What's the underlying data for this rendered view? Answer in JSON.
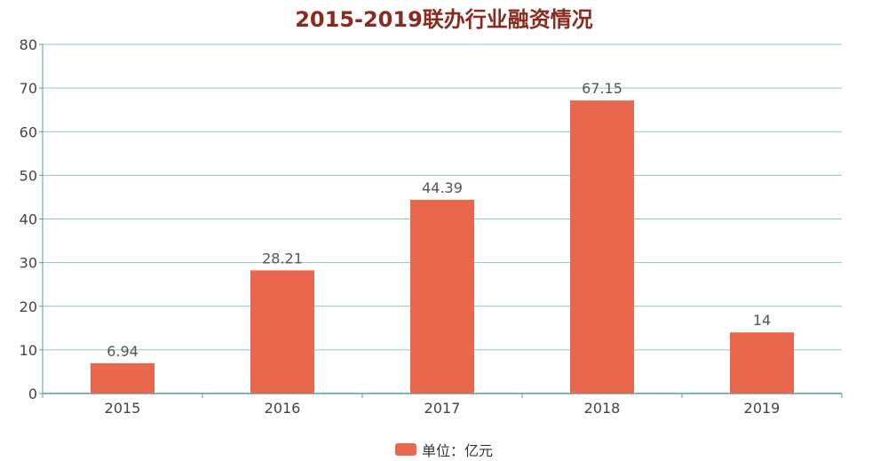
{
  "chart_data": {
    "type": "bar",
    "title": "2015-2019联办行业融资情况",
    "categories": [
      "2015",
      "2016",
      "2017",
      "2018",
      "2019"
    ],
    "series": [
      {
        "name": "单位：亿元",
        "values": [
          6.94,
          28.21,
          44.39,
          67.15,
          14
        ]
      }
    ],
    "data_labels": [
      "6.94",
      "28.21",
      "44.39",
      "67.15",
      "14"
    ],
    "ylim": [
      0,
      80
    ],
    "y_ticks": [
      0,
      10,
      20,
      30,
      40,
      50,
      60,
      70,
      80
    ],
    "xlabel": "",
    "ylabel": "",
    "grid": true,
    "legend_position": "bottom-center",
    "colors": {
      "bar": "#e8674d",
      "title": "#8b2a1e",
      "grid": "#8fc3cc",
      "axis": "#5a9aa5"
    }
  }
}
